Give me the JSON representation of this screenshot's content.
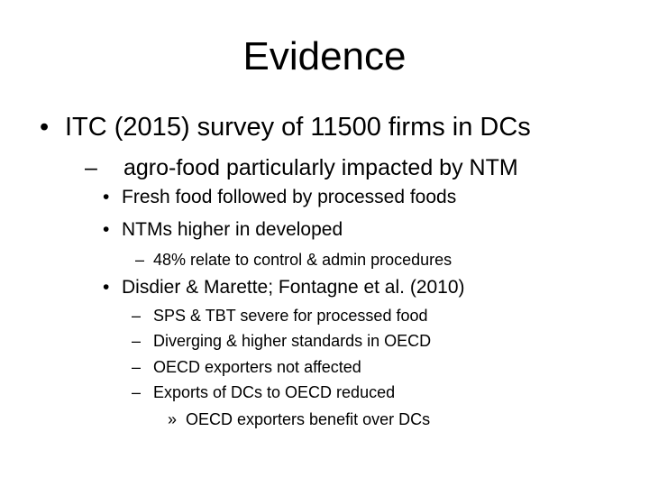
{
  "slide": {
    "title": "Evidence",
    "markers": {
      "bullet": "•",
      "dash": "–",
      "chevron": "»"
    },
    "items": [
      {
        "level": 1,
        "text": "ITC (2015) survey of 11500 firms in DCs"
      },
      {
        "level": 2,
        "text": "agro-food particularly impacted by NTM"
      },
      {
        "level": 3,
        "text": "Fresh food followed by processed foods"
      },
      {
        "level": 3,
        "text": "NTMs higher in developed"
      },
      {
        "level": 4,
        "text": "48% relate to control & admin procedures"
      },
      {
        "level": 3,
        "text": "Disdier & Marette; Fontagne et al. (2010)"
      },
      {
        "level": 4,
        "text": "SPS & TBT severe for processed food"
      },
      {
        "level": 4,
        "text": "Diverging & higher standards in OECD"
      },
      {
        "level": 4,
        "text": "OECD exporters not affected"
      },
      {
        "level": 4,
        "text": "Exports of DCs to OECD reduced"
      },
      {
        "level": 5,
        "text": "OECD exporters benefit over DCs"
      }
    ]
  }
}
